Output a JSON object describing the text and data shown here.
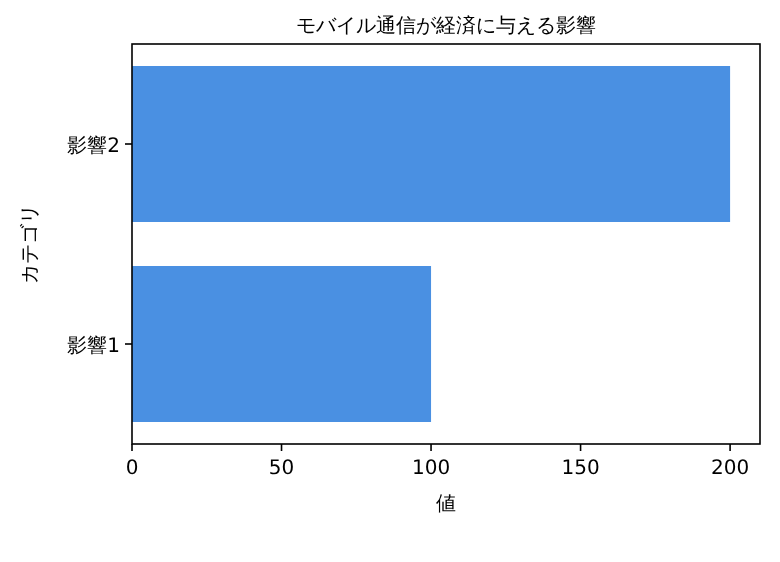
{
  "chart_data": {
    "type": "bar",
    "orientation": "horizontal",
    "title": "モバイル通信が経済に与える影響",
    "xlabel": "値",
    "ylabel": "カテゴリ",
    "categories": [
      "影響2",
      "影響1"
    ],
    "values": [
      200,
      100
    ],
    "color": "#4a90e2",
    "xlim": [
      0,
      210
    ],
    "xticks": [
      0,
      50,
      100,
      150,
      200
    ]
  }
}
